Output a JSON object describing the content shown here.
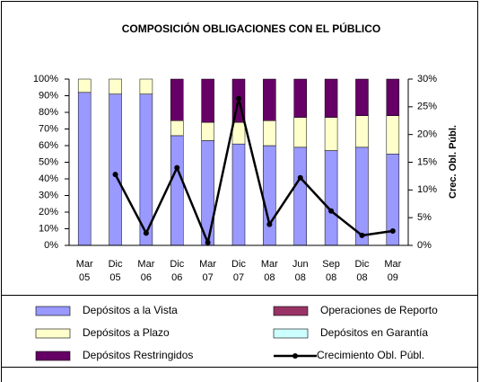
{
  "chart_data": {
    "type": "bar",
    "title": "COMPOSICIÓN OBLIGACIONES CON EL PÚBLICO",
    "stacked": true,
    "categories": [
      "Mar 05",
      "Dic 05",
      "Mar 06",
      "Dic 06",
      "Mar 07",
      "Dic 07",
      "Mar 08",
      "Jun 08",
      "Sep 08",
      "Dic 08",
      "Mar 09"
    ],
    "series": [
      {
        "name": "Depósitos a la Vista",
        "color": "#9999ff",
        "values": [
          92,
          91,
          91,
          66,
          63,
          61,
          60,
          59,
          57,
          59,
          55
        ]
      },
      {
        "name": "Depósitos a Plazo",
        "color": "#ffffcc",
        "values": [
          8,
          9,
          9,
          9,
          11,
          13,
          15,
          18,
          20,
          19,
          23
        ]
      },
      {
        "name": "Operaciones de Reporto",
        "color": "#993366",
        "values": [
          0,
          0,
          0,
          0,
          0,
          0,
          0,
          0,
          0,
          0,
          0
        ]
      },
      {
        "name": "Depósitos en Garantía",
        "color": "#ccffff",
        "values": [
          0,
          0,
          0,
          0,
          0,
          0,
          0,
          0,
          0,
          0,
          0
        ]
      },
      {
        "name": "Depósitos Restringidos",
        "color": "#660066",
        "values": [
          0,
          0,
          0,
          25,
          26,
          26,
          25,
          23,
          23,
          22,
          22
        ]
      },
      {
        "name": "Crecimiento Obl. Públ.",
        "color": "#000000",
        "type": "line",
        "axis": "y2",
        "values": [
          null,
          12.8,
          2.2,
          14,
          0.5,
          26.5,
          3.8,
          12.2,
          6.2,
          1.8,
          2.6
        ]
      }
    ],
    "ylim": [
      0,
      100
    ],
    "yticks": [
      {
        "value": 0,
        "label": "0%"
      },
      {
        "value": 10,
        "label": "10%"
      },
      {
        "value": 20,
        "label": "20%"
      },
      {
        "value": 30,
        "label": "30%"
      },
      {
        "value": 40,
        "label": "40%"
      },
      {
        "value": 50,
        "label": "50%"
      },
      {
        "value": 60,
        "label": "60%"
      },
      {
        "value": 70,
        "label": "70%"
      },
      {
        "value": 80,
        "label": "80%"
      },
      {
        "value": 90,
        "label": "90%"
      },
      {
        "value": 100,
        "label": "100%"
      }
    ],
    "y2label": "Crec. Obl. Públ.",
    "y2lim": [
      0,
      30
    ],
    "y2ticks": [
      {
        "value": 0,
        "label": "0%"
      },
      {
        "value": 5,
        "label": "5%"
      },
      {
        "value": 10,
        "label": "10%"
      },
      {
        "value": 15,
        "label": "15%"
      },
      {
        "value": 20,
        "label": "20%"
      },
      {
        "value": 25,
        "label": "25%"
      },
      {
        "value": 30,
        "label": "30%"
      }
    ],
    "legend": "bottom"
  }
}
